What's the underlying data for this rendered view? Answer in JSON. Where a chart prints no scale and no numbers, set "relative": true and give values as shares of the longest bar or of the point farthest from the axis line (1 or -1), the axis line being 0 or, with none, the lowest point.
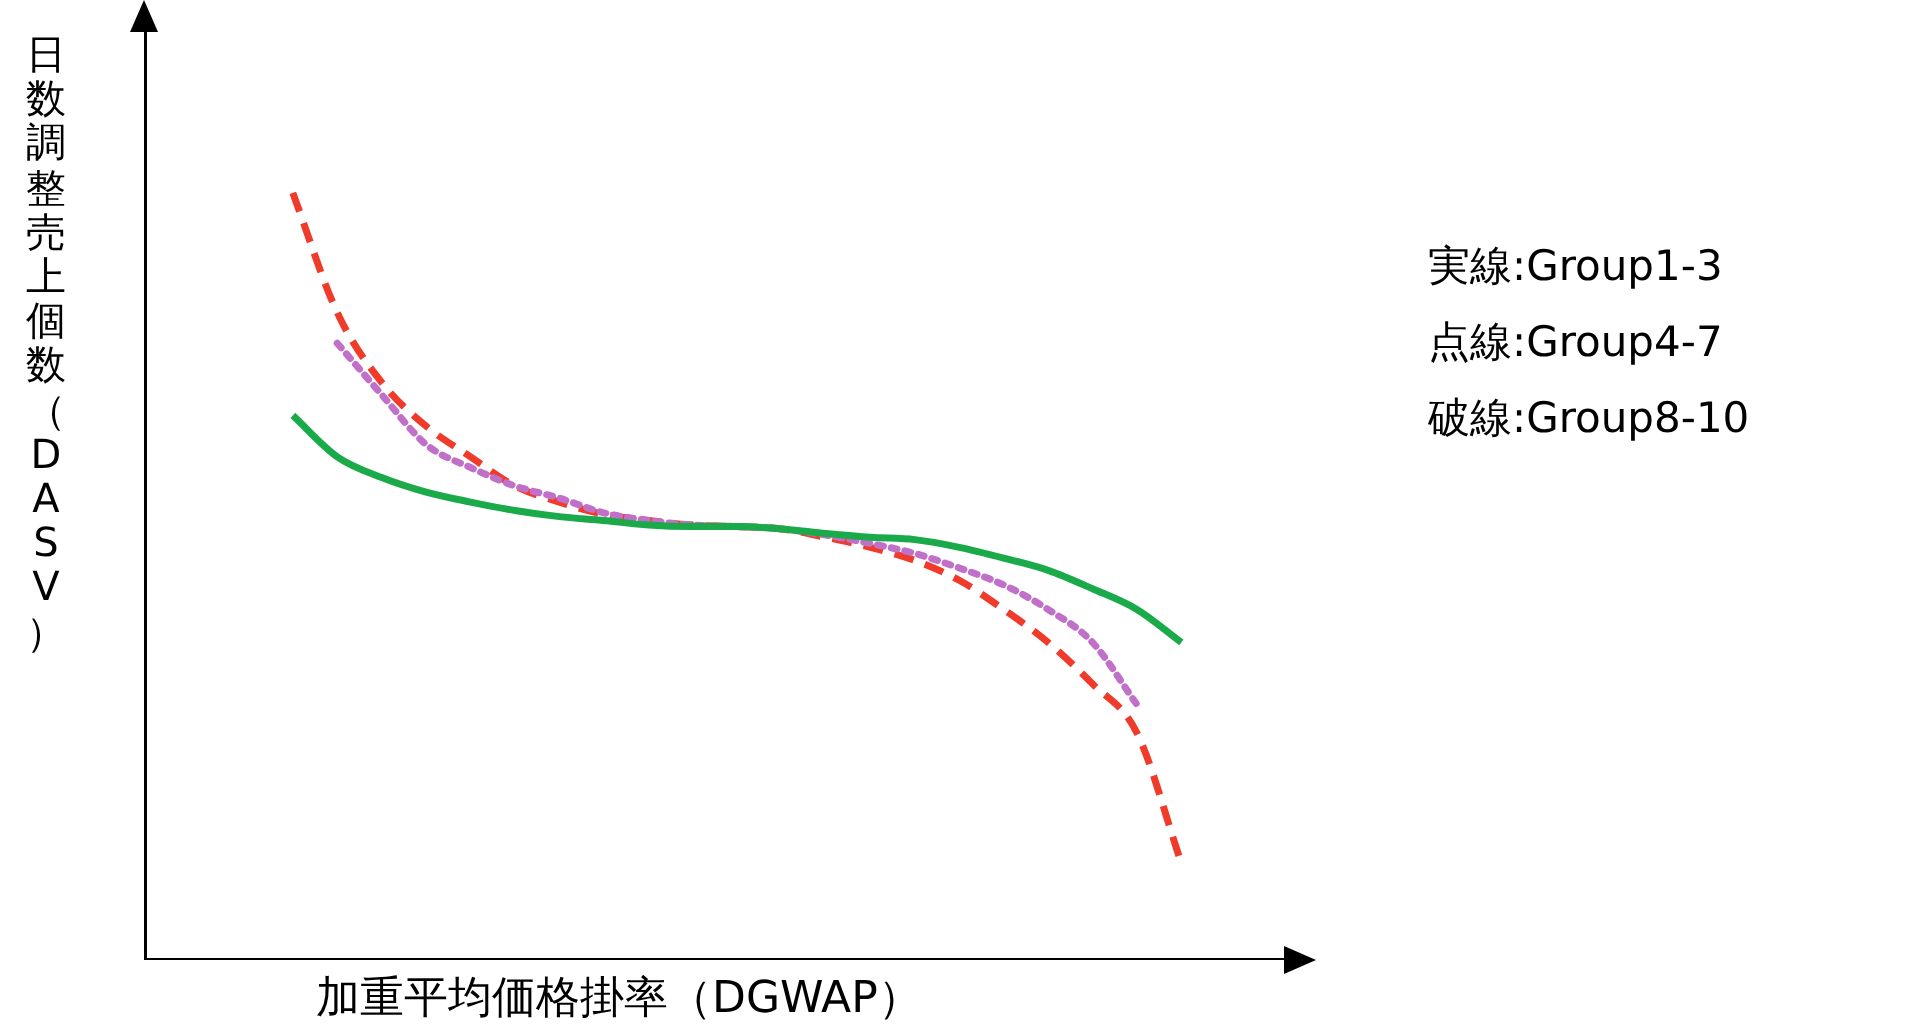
{
  "chart_data": {
    "type": "line",
    "relative": true,
    "xlabel": "加重平均価格掛率（DGWAP）",
    "ylabel": "日数調整売上個数（DASV）",
    "categories": [
      null,
      null,
      null,
      null,
      null,
      null,
      null,
      null,
      null,
      null,
      null,
      null,
      null,
      null,
      null,
      null,
      null,
      null,
      null,
      null,
      null
    ],
    "series": [
      {
        "color": "#1aaa4a",
        "line_style": "solid",
        "values": [
          0.71,
          0.656,
          0.629,
          0.61,
          0.597,
          0.586,
          0.578,
          0.573,
          0.567,
          0.565,
          0.565,
          0.562,
          0.556,
          0.551,
          0.548,
          0.538,
          0.524,
          0.508,
          0.484,
          0.457,
          0.414
        ]
      },
      {
        "color": "#c070c8",
        "line_style": "dotted",
        "values": [
          null,
          0.804,
          0.737,
          0.672,
          0.642,
          0.618,
          0.602,
          0.583,
          0.573,
          0.567,
          0.565,
          0.562,
          0.554,
          0.543,
          0.53,
          0.511,
          0.489,
          0.457,
          0.414,
          0.333,
          null
        ]
      },
      {
        "color": "#f03a2a",
        "line_style": "dashed",
        "values": [
          1.0,
          0.844,
          0.753,
          0.696,
          0.656,
          0.618,
          0.597,
          0.581,
          0.573,
          0.567,
          0.565,
          0.562,
          0.551,
          0.538,
          0.521,
          0.495,
          0.457,
          0.414,
          0.36,
          0.296,
          0.126
        ]
      }
    ],
    "annotations": [
      "実線:Group1-3",
      "点線:Group4-7",
      "破線:Group8-10"
    ],
    "legend": false,
    "grid": false
  }
}
